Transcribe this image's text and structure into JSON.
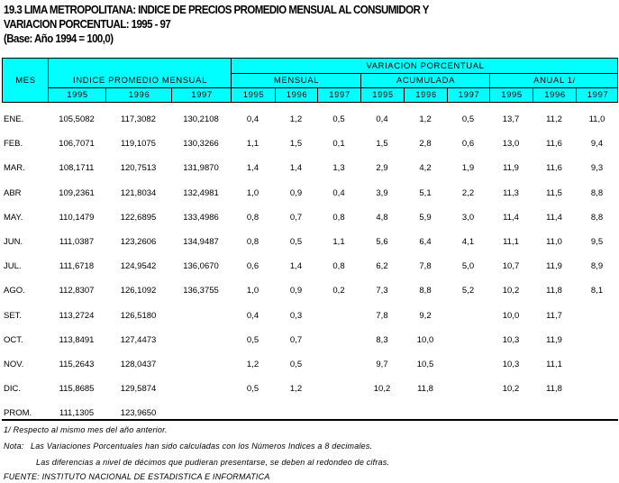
{
  "title": {
    "line1": "19.3 LIMA METROPOLITANA: INDICE DE PRECIOS PROMEDIO MENSUAL AL CONSUMIDOR Y",
    "line2": "VARIACION PORCENTUAL: 1995 - 97",
    "line3": "(Base: Año 1994 = 100,0)"
  },
  "header": {
    "mes": "MES",
    "indice": "INDICE  PROMEDIO  MENSUAL",
    "variacion": "VARIACION  PORCENTUAL",
    "mensual": "MENSUAL",
    "acumulada": "ACUMULADA",
    "anual": "ANUAL 1/",
    "years": [
      "1995",
      "1996",
      "1997",
      "1995",
      "1996",
      "1997",
      "1995",
      "1996",
      "1997",
      "1995",
      "1996",
      "1997"
    ]
  },
  "colors": {
    "header_bg": "#00ffff"
  },
  "rows": [
    {
      "mes": "ENE.",
      "values": [
        "105,5082",
        "117,3082",
        "130,2108",
        "0,4",
        "1,2",
        "0,5",
        "0,4",
        "1,2",
        "0,5",
        "13,7",
        "11,2",
        "11,0"
      ]
    },
    {
      "mes": "FEB.",
      "values": [
        "106,7071",
        "119,1075",
        "130,3266",
        "1,1",
        "1,5",
        "0,1",
        "1,5",
        "2,8",
        "0,6",
        "13,0",
        "11,6",
        "9,4"
      ]
    },
    {
      "mes": "MAR.",
      "values": [
        "108,1711",
        "120,7513",
        "131,9870",
        "1,4",
        "1,4",
        "1,3",
        "2,9",
        "4,2",
        "1,9",
        "11,9",
        "11,6",
        "9,3"
      ]
    },
    {
      "mes": "ABR",
      "values": [
        "109,2361",
        "121,8034",
        "132,4981",
        "1,0",
        "0,9",
        "0,4",
        "3,9",
        "5,1",
        "2,2",
        "11,3",
        "11,5",
        "8,8"
      ]
    },
    {
      "mes": "MAY.",
      "values": [
        "110,1479",
        "122,6895",
        "133,4986",
        "0,8",
        "0,7",
        "0,8",
        "4,8",
        "5,9",
        "3,0",
        "11,4",
        "11,4",
        "8,8"
      ]
    },
    {
      "mes": "JUN.",
      "values": [
        "111,0387",
        "123,2606",
        "134,9487",
        "0,8",
        "0,5",
        "1,1",
        "5,6",
        "6,4",
        "4,1",
        "11,1",
        "11,0",
        "9,5"
      ]
    },
    {
      "mes": "JUL.",
      "values": [
        "111,6718",
        "124,9542",
        "136,0670",
        "0,6",
        "1,4",
        "0,8",
        "6,2",
        "7,8",
        "5,0",
        "10,7",
        "11,9",
        "8,9"
      ]
    },
    {
      "mes": "AGO.",
      "values": [
        "112,8307",
        "126,1092",
        "136,3755",
        "1,0",
        "0,9",
        "0,2",
        "7,3",
        "8,8",
        "5,2",
        "10,2",
        "11,8",
        "8,1"
      ]
    },
    {
      "mes": "SET.",
      "values": [
        "113,2724",
        "126,5180",
        "",
        "0,4",
        "0,3",
        "",
        "7,8",
        "9,2",
        "",
        "10,0",
        "11,7",
        ""
      ]
    },
    {
      "mes": "OCT.",
      "values": [
        "113,8491",
        "127,4473",
        "",
        "0,5",
        "0,7",
        "",
        "8,3",
        "10,0",
        "",
        "10,3",
        "11,9",
        ""
      ]
    },
    {
      "mes": "NOV.",
      "values": [
        "115,2643",
        "128,0437",
        "",
        "1,2",
        "0,5",
        "",
        "9,7",
        "10,5",
        "",
        "10,3",
        "11,1",
        ""
      ]
    },
    {
      "mes": "DIC.",
      "values": [
        "115,8685",
        "129,5874",
        "",
        "0,5",
        "1,2",
        "",
        "10,2",
        "11,8",
        "",
        "10,2",
        "11,8",
        ""
      ]
    },
    {
      "mes": "PROM.",
      "values": [
        "111,1305",
        "123,9650",
        "",
        "",
        "",
        "",
        "",
        "",
        "",
        "",
        "",
        ""
      ]
    }
  ],
  "footnotes": {
    "note1": "1/ Respecto al mismo mes del año anterior.",
    "nota_label": "Nota:",
    "nota1": "Las Variaciones Porcentuales han sido calculadas con los Números Indices a 8 decimales.",
    "nota2": "Las diferencias a nivel de décimos que pudieran presentarse, se deben al redondeo de cifras.",
    "fuente": "FUENTE: INSTITUTO NACIONAL DE ESTADISTICA E INFORMATICA"
  }
}
